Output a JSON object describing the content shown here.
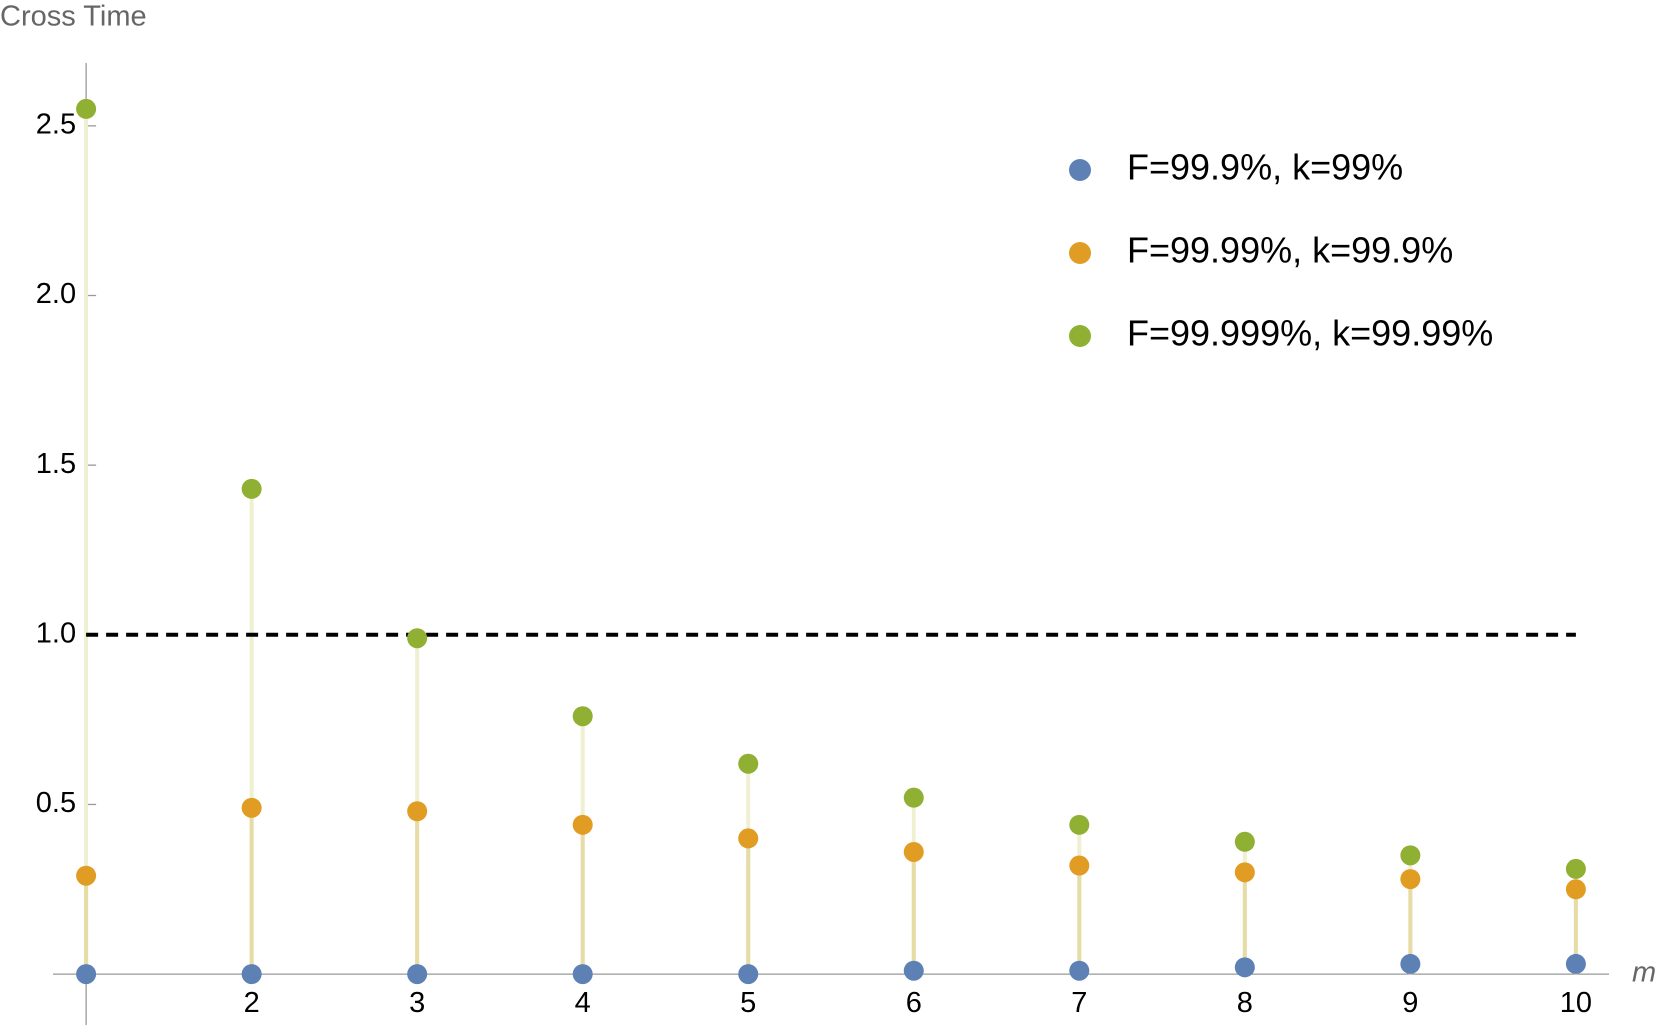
{
  "chart_data": {
    "type": "stem",
    "y_label": "Cross Time",
    "x_label": "m",
    "x": [
      1,
      2,
      3,
      4,
      5,
      6,
      7,
      8,
      9,
      10
    ],
    "series": [
      {
        "name": "F=99.9%, k=99%",
        "color": "#5e81b5",
        "values": [
          0,
          0,
          0,
          0,
          0,
          0.01,
          0.01,
          0.02,
          0.03,
          0.03
        ]
      },
      {
        "name": "F=99.99%, k=99.9%",
        "color": "#e19c24",
        "values": [
          0.29,
          0.49,
          0.48,
          0.44,
          0.4,
          0.36,
          0.32,
          0.3,
          0.28,
          0.25
        ]
      },
      {
        "name": "F=99.999%, k=99.99%",
        "color": "#8fb032",
        "values": [
          2.55,
          1.43,
          0.99,
          0.76,
          0.62,
          0.52,
          0.44,
          0.39,
          0.35,
          0.31
        ]
      }
    ],
    "reference_line": 1,
    "xlim": [
      0.8,
      10.2
    ],
    "ylim": [
      -0.15,
      2.7
    ],
    "xticks": [
      2,
      3,
      4,
      5,
      6,
      7,
      8,
      9,
      10
    ],
    "yticks": [
      0.5,
      {
        "value": 1,
        "label": "1.0"
      },
      1.5,
      {
        "value": 2,
        "label": "2.0"
      },
      2.5
    ],
    "legend": "top-right"
  }
}
